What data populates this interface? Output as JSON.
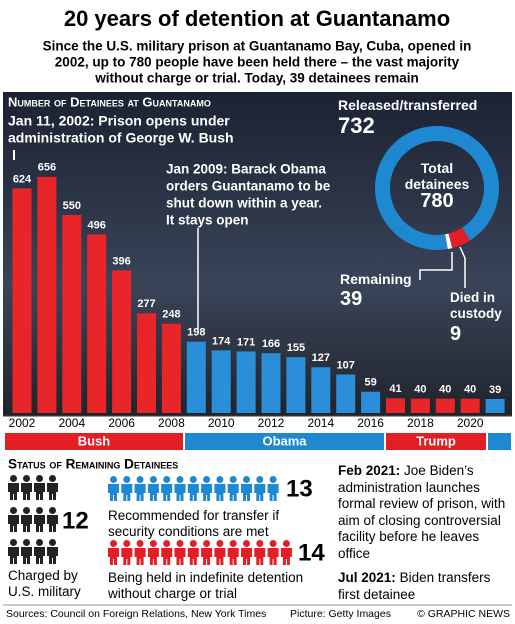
{
  "header": {
    "title": "20 years of detention at Guantanamo",
    "subtitle": [
      "Since the U.S. military prison at Guantanamo Bay, Cuba, opened in",
      "2002, up to 780 people have been held there – the vast majority",
      "without charge or trial. Today, 39 detainees remain"
    ]
  },
  "chart_data": [
    {
      "type": "bar",
      "title": "Number of Detainees at Guantanamo",
      "categories": [
        "2002",
        null,
        "2004",
        null,
        "2006",
        null,
        "2008",
        null,
        "2010",
        null,
        "2012",
        null,
        "2014",
        null,
        "2016",
        null,
        "2018",
        null,
        "2020",
        null
      ],
      "values": [
        624,
        656,
        550,
        496,
        396,
        277,
        248,
        198,
        174,
        171,
        166,
        155,
        127,
        107,
        59,
        41,
        40,
        40,
        40,
        39
      ],
      "colors": [
        "#e8262a",
        "#e8262a",
        "#e8262a",
        "#e8262a",
        "#e8262a",
        "#e8262a",
        "#e8262a",
        "#2a8fd8",
        "#2a8fd8",
        "#2a8fd8",
        "#2a8fd8",
        "#2a8fd8",
        "#2a8fd8",
        "#2a8fd8",
        "#2a8fd8",
        "#e8262a",
        "#e8262a",
        "#e8262a",
        "#e8262a",
        "#2a8fd8"
      ],
      "eras": [
        {
          "name": "Bush",
          "color": "#e31e24"
        },
        {
          "name": "Obama",
          "color": "#1e88d0"
        },
        {
          "name": "Trump",
          "color": "#e31e24"
        },
        {
          "name": null,
          "color": "#1e88d0"
        }
      ],
      "annotations": [
        [
          "Jan 11, 2002: Prison opens under",
          "administration of George W. Bush"
        ],
        [
          "Jan 2009: Barack Obama",
          "orders Guantanamo to be",
          "shut down within a year.",
          "It stays open"
        ]
      ]
    },
    {
      "type": "donut",
      "center_label": "Total detainees",
      "total": 780,
      "categories": [
        "Released/transferred",
        "Remaining",
        "Died in custody"
      ],
      "values": [
        732,
        39,
        9
      ],
      "colors": [
        "#1e88d0",
        "#e31e24",
        "#ffffff"
      ]
    }
  ],
  "status": {
    "title": "Status of Remaining Detainees",
    "groups": [
      {
        "count": 12,
        "label": "Charged by U.S. military",
        "color": "#222222"
      },
      {
        "count": 13,
        "label": "Recommended for transfer if security conditions are met",
        "color": "#1e88d0"
      },
      {
        "count": 14,
        "label": "Being held in indefinite detention without charge or trial",
        "color": "#e31e24"
      }
    ]
  },
  "timeline": [
    {
      "date": "Feb 2021:",
      "text": "Joe Biden’s administration launches formal review of prison, with aim of closing controversial facility before he leaves office"
    },
    {
      "date": "Jul 2021:",
      "text": "Biden transfers first detainee"
    }
  ],
  "footer": {
    "sources": "Sources: Council on Foreign Relations, New York Times",
    "picture": "Picture: Getty Images",
    "credit": "© GRAPHIC NEWS"
  }
}
